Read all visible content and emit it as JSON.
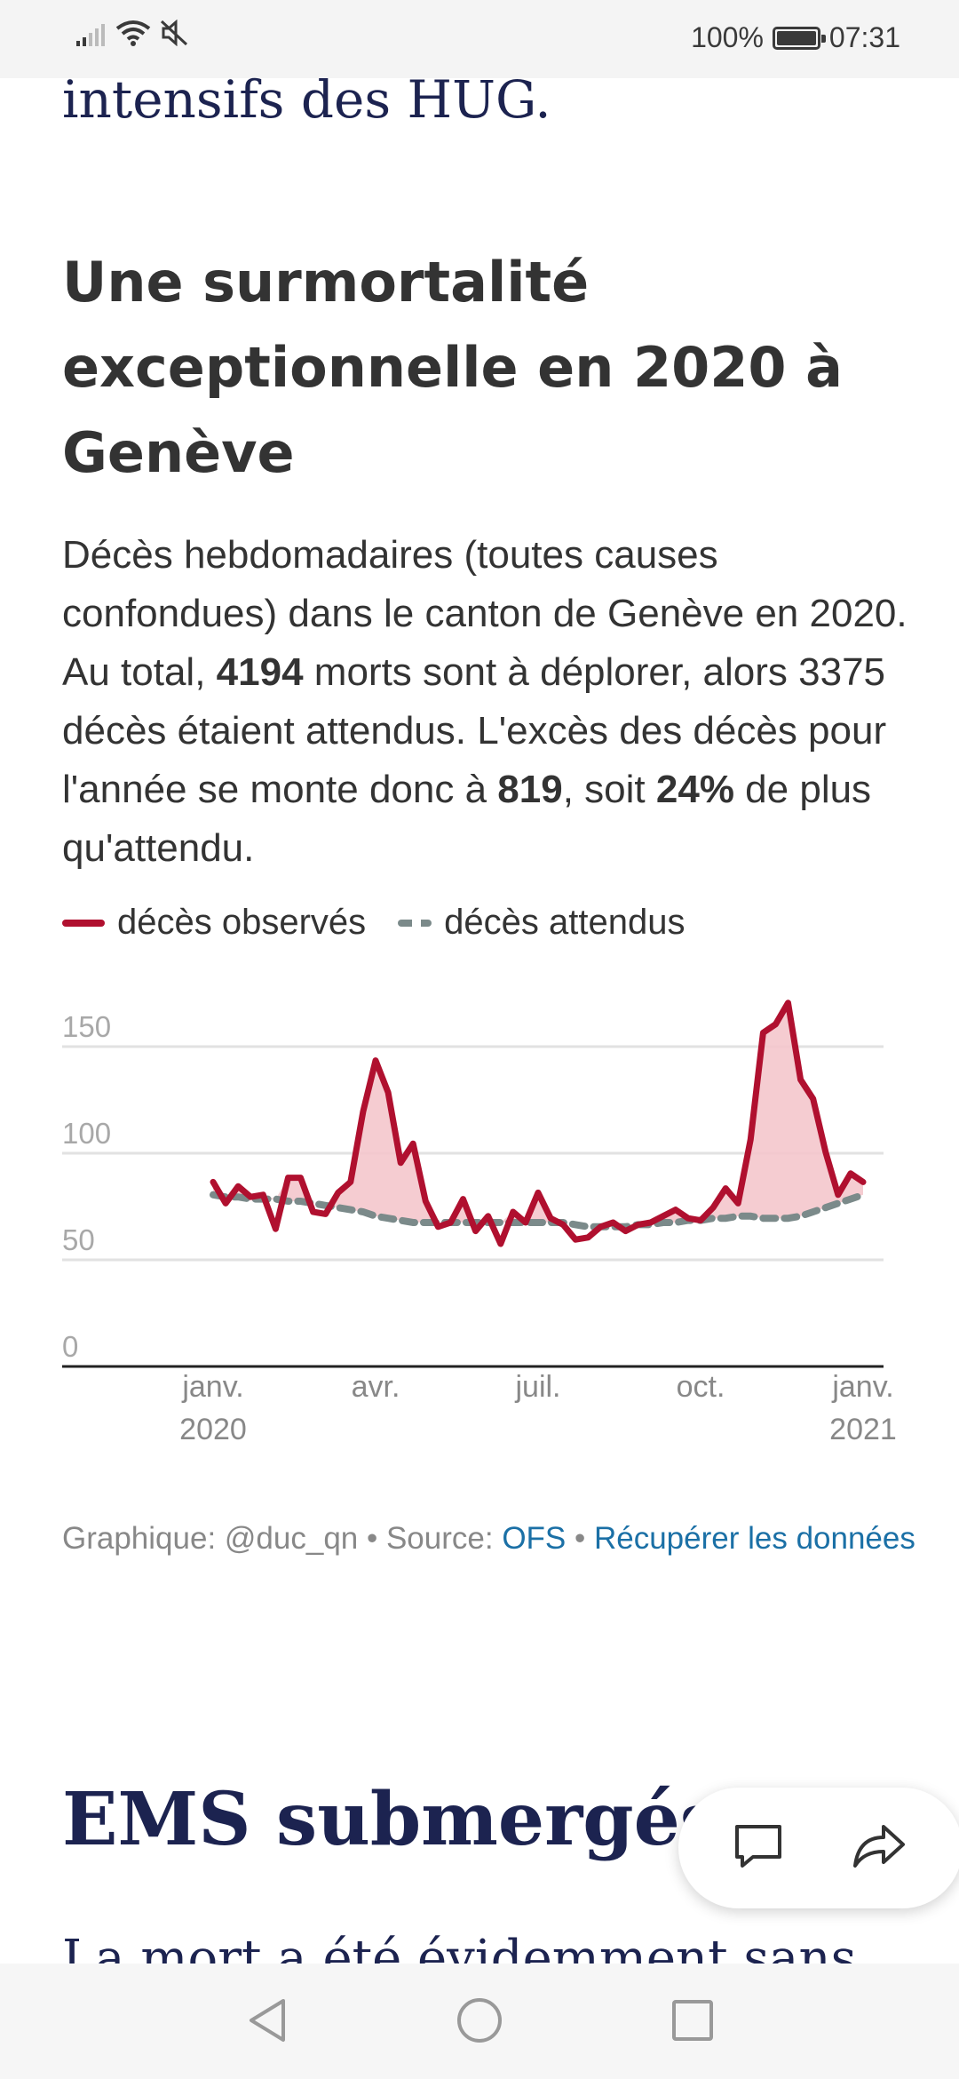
{
  "status_bar": {
    "battery_percent": "100%",
    "time": "07:31",
    "icons": [
      "signal-icon",
      "wifi-icon",
      "mute-icon",
      "battery-icon"
    ]
  },
  "article": {
    "previous_text": "intensifs des HUG.",
    "section_title_lines": [
      "Une surmortalité",
      "exceptionnelle en 2020 à",
      "Genève"
    ],
    "lead": {
      "part1": "Décès hebdomadaires (toutes causes confondues) dans le canton de Genève en 2020. Au total, ",
      "total_deaths": "4194",
      "part2": " morts sont à déplorer, alors 3375 décès étaient attendus. L'excès des décès pour l'année se monte donc à ",
      "excess_deaths": "819",
      "part3": ", soit ",
      "excess_percent": "24%",
      "part4": " de plus qu'attendu."
    },
    "legend": {
      "observed": "décès observés",
      "expected": "décès attendus"
    },
    "source_line": {
      "prefix": "Graphique: @duc_qn • Source: ",
      "source_link": "OFS",
      "separator": " • ",
      "data_link": "Récupérer les données"
    },
    "next_heading": "EMS submergés",
    "next_body_text": "La mort a été évidemment sans"
  },
  "colors": {
    "observed": "#b0102f",
    "observed_fill": "#f4c6cc",
    "expected": "#7b8a8a",
    "heading_serif": "#1c2350",
    "link": "#1b70a6"
  },
  "chart_data": {
    "type": "line",
    "title": "",
    "xlabel": "",
    "ylabel": "",
    "ylim": [
      0,
      150
    ],
    "yticks": [
      "0",
      "50",
      "100",
      "150"
    ],
    "xticks": [
      {
        "label1": "janv.",
        "label2": "2020",
        "week": 0
      },
      {
        "label1": "avr.",
        "label2": "",
        "week": 13
      },
      {
        "label1": "juil.",
        "label2": "",
        "week": 26
      },
      {
        "label1": "oct.",
        "label2": "",
        "week": 39
      },
      {
        "label1": "janv.",
        "label2": "2021",
        "week": 52
      }
    ],
    "grid": true,
    "legend_position": "top",
    "series": [
      {
        "name": "décès observés",
        "style": "solid",
        "values": [
          79,
          69,
          77,
          72,
          73,
          57,
          81,
          81,
          65,
          64,
          74,
          79,
          112,
          136,
          121,
          88,
          97,
          70,
          58,
          60,
          71,
          56,
          63,
          50,
          65,
          60,
          74,
          62,
          59,
          52,
          53,
          58,
          60,
          56,
          59,
          60,
          63,
          66,
          62,
          61,
          67,
          76,
          69,
          99,
          149,
          153,
          163,
          127,
          118,
          93,
          73,
          83,
          79
        ]
      },
      {
        "name": "décès attendus",
        "style": "dashed",
        "values": [
          73,
          72,
          72,
          71,
          71,
          71,
          70,
          70,
          69,
          68,
          67,
          66,
          65,
          63,
          62,
          61,
          60,
          60,
          60,
          60,
          60,
          60,
          60,
          60,
          60,
          60,
          60,
          60,
          60,
          59,
          58,
          58,
          58,
          58,
          59,
          59,
          60,
          60,
          61,
          61,
          62,
          62,
          63,
          63,
          62,
          62,
          62,
          63,
          65,
          67,
          69,
          71,
          73
        ]
      }
    ]
  }
}
